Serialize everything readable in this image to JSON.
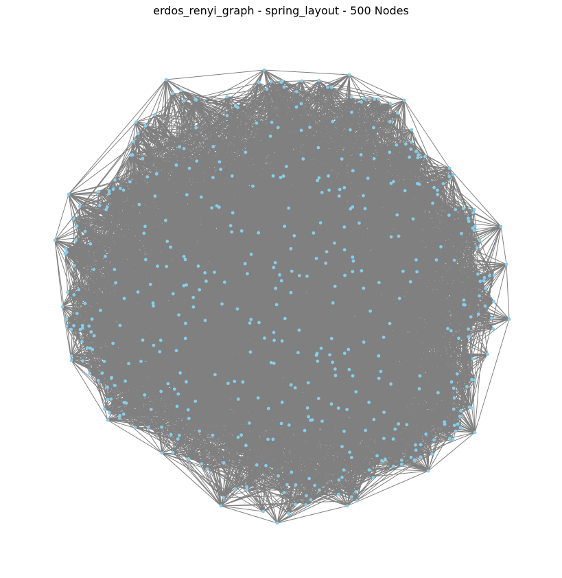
{
  "figure": {
    "title": "erdos_renyi_graph - spring_layout - 500 Nodes"
  },
  "graph": {
    "generator": "erdos_renyi_graph",
    "layout": "spring_layout",
    "node_count": 500,
    "node_color": "#87ceeb",
    "edge_color": "#808080",
    "background_color": "#ffffff"
  }
}
